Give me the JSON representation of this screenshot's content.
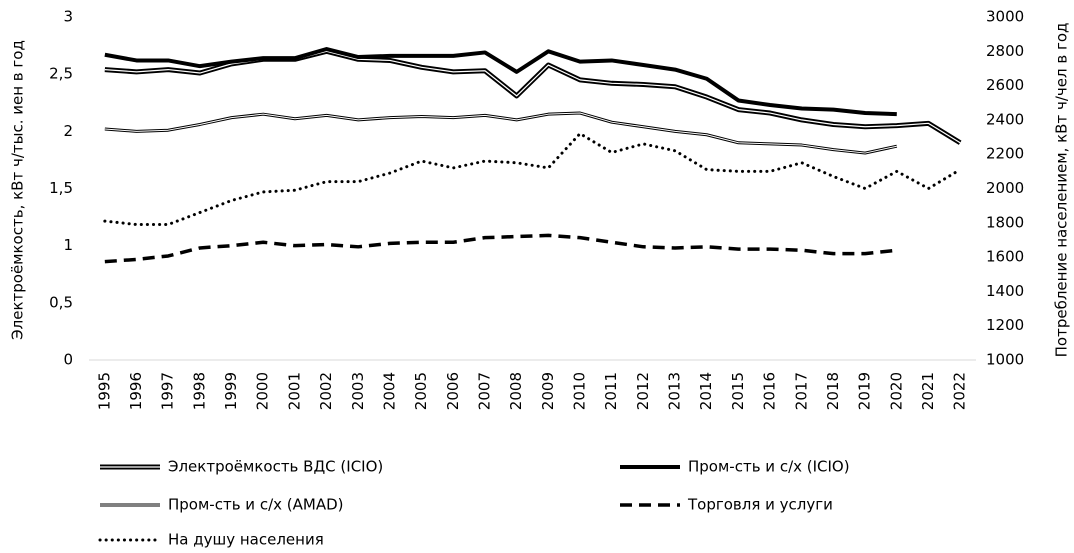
{
  "chart_data": {
    "type": "line",
    "y_label": "Электроёмкость, кВт ч/тыс. иен в год",
    "y2_label": "Потребление населением, кВт ч/чел в год",
    "categories": [
      "1995",
      "1996",
      "1997",
      "1998",
      "1999",
      "2000",
      "2001",
      "2002",
      "2003",
      "2004",
      "2005",
      "2006",
      "2007",
      "2008",
      "2009",
      "2010",
      "2011",
      "2012",
      "2013",
      "2014",
      "2015",
      "2016",
      "2017",
      "2018",
      "2019",
      "2020",
      "2021",
      "2022"
    ],
    "ylim": [
      0,
      3
    ],
    "yticks": [
      0,
      {
        "value": 0.5,
        "label": "0,5"
      },
      1,
      {
        "value": 1.5,
        "label": "1,5"
      },
      2,
      {
        "value": 2.5,
        "label": "2,5"
      },
      3
    ],
    "y2lim": [
      1000,
      3000
    ],
    "y2ticks": [
      1000,
      1200,
      1400,
      1600,
      1800,
      2000,
      2200,
      2400,
      2600,
      2800,
      3000
    ],
    "grid": false,
    "legend": "bottom",
    "series": [
      {
        "name": "Электроёмкость ВДС (ICIO)",
        "color": "#000000",
        "line_style": "double",
        "values": [
          2.54,
          2.52,
          2.54,
          2.51,
          2.59,
          2.63,
          2.63,
          2.7,
          2.63,
          2.62,
          2.56,
          2.52,
          2.53,
          2.31,
          2.58,
          2.45,
          2.42,
          2.41,
          2.39,
          2.3,
          2.19,
          2.16,
          2.1,
          2.06,
          2.04,
          2.05,
          2.07,
          1.9
        ]
      },
      {
        "name": "Пром-сть и с/х (ICIO)",
        "color": "#000000",
        "line_style": "thick",
        "values": [
          2.67,
          2.62,
          2.62,
          2.57,
          2.61,
          2.64,
          2.64,
          2.72,
          2.65,
          2.66,
          2.66,
          2.66,
          2.69,
          2.52,
          2.7,
          2.61,
          2.62,
          2.58,
          2.54,
          2.46,
          2.27,
          2.23,
          2.2,
          2.19,
          2.16,
          2.15,
          null,
          null
        ]
      },
      {
        "name": "Пром-сть и с/х (AMAD)",
        "color": "#000000",
        "line_style": "thin-double",
        "values": [
          2.02,
          2.0,
          2.01,
          2.06,
          2.12,
          2.15,
          2.11,
          2.14,
          2.1,
          2.12,
          2.13,
          2.12,
          2.14,
          2.1,
          2.15,
          2.16,
          2.08,
          2.04,
          2.0,
          1.97,
          1.9,
          1.89,
          1.88,
          1.84,
          1.81,
          1.87,
          null,
          null
        ]
      },
      {
        "name": "Торговля и услуги",
        "color": "#000000",
        "line_style": "dashed",
        "values": [
          0.86,
          0.88,
          0.91,
          0.98,
          1.0,
          1.03,
          1.0,
          1.01,
          0.99,
          1.02,
          1.03,
          1.03,
          1.07,
          1.08,
          1.09,
          1.07,
          1.03,
          0.99,
          0.98,
          0.99,
          0.97,
          0.97,
          0.96,
          0.93,
          0.93,
          0.96,
          null,
          null
        ]
      },
      {
        "name": "На душу населения",
        "color": "#000000",
        "line_style": "dotted",
        "axis": "y2",
        "values": [
          1810,
          1790,
          1790,
          1860,
          1930,
          1980,
          1990,
          2040,
          2040,
          2090,
          2160,
          2120,
          2160,
          2150,
          2120,
          2320,
          2210,
          2260,
          2220,
          2110,
          2100,
          2100,
          2150,
          2070,
          2000,
          2100,
          2000,
          2110
        ]
      }
    ]
  }
}
